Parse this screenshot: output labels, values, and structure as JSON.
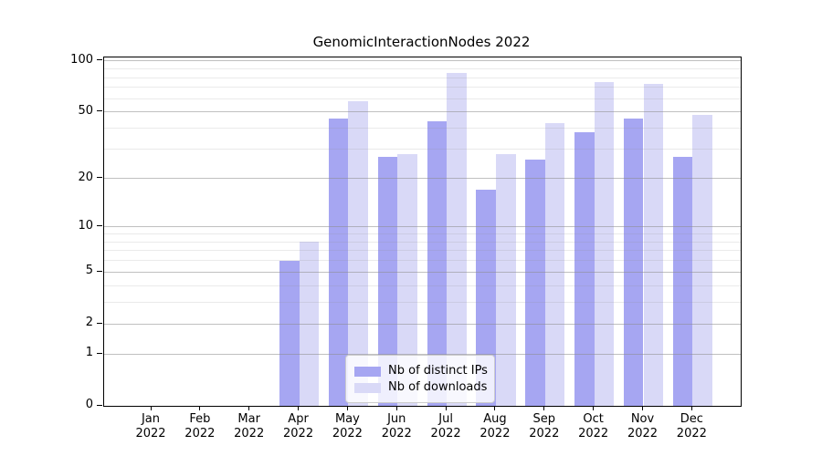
{
  "figure": {
    "title": "GenomicInteractionNodes 2022"
  },
  "legend": {
    "position": "lower center",
    "items": [
      {
        "label": "Nb of distinct IPs",
        "color": "#a6a6f2"
      },
      {
        "label": "Nb of downloads",
        "color": "#d9d9f7"
      }
    ]
  },
  "chart_data": {
    "type": "bar",
    "title": "GenomicInteractionNodes 2022",
    "categories": [
      "Jan 2022",
      "Feb 2022",
      "Mar 2022",
      "Apr 2022",
      "May 2022",
      "Jun 2022",
      "Jul 2022",
      "Aug 2022",
      "Sep 2022",
      "Oct 2022",
      "Nov 2022",
      "Dec 2022"
    ],
    "series": [
      {
        "name": "Nb of distinct IPs",
        "color": "#a6a6f2",
        "values": [
          0,
          0,
          0,
          6,
          46,
          27,
          44,
          17,
          26,
          38,
          46,
          27
        ]
      },
      {
        "name": "Nb of downloads",
        "color": "#d9d9f7",
        "values": [
          0,
          0,
          0,
          8,
          58,
          28,
          85,
          28,
          43,
          75,
          73,
          48
        ]
      }
    ],
    "yscale": "log1p",
    "ylim": [
      0,
      105
    ],
    "yticks_major": [
      0,
      1,
      2,
      5,
      10,
      20,
      50,
      100
    ],
    "yticks_minor": [
      3,
      4,
      6,
      7,
      8,
      9,
      30,
      40,
      60,
      70,
      80,
      90
    ],
    "grid": true,
    "grid_on_top_of_bars": true,
    "colors": {
      "major_grid": "rgba(140,140,140,0.55)",
      "minor_grid": "rgba(140,140,140,0.18)",
      "spine": "#000000"
    }
  }
}
